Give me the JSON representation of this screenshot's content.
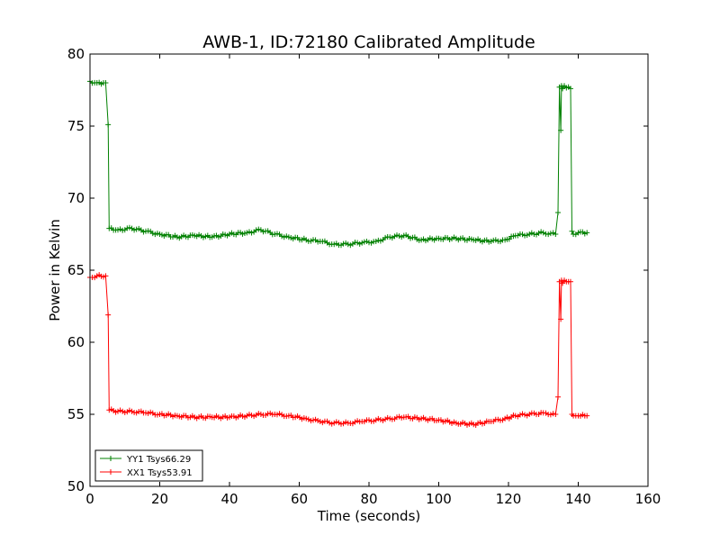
{
  "chart_data": {
    "type": "line",
    "title": "AWB-1, ID:72180 Calibrated Amplitude",
    "xlabel": "Time (seconds)",
    "ylabel": "Power in Kelvin",
    "xlim": [
      0,
      160
    ],
    "ylim": [
      50,
      80
    ],
    "xticks": [
      0,
      20,
      40,
      60,
      80,
      100,
      120,
      140,
      160
    ],
    "yticks": [
      50,
      55,
      60,
      65,
      70,
      75,
      80
    ],
    "grid": false,
    "legend_position": "lower-left",
    "series": [
      {
        "name": "YY1 Tsys66.29",
        "color": "#008000",
        "x": [
          0,
          2,
          4.5,
          5.2,
          5.5,
          8,
          12,
          16,
          20,
          25,
          30,
          35,
          40,
          45,
          49,
          53,
          57,
          62,
          66,
          70,
          74,
          78,
          82,
          86,
          90,
          95,
          100,
          105,
          110,
          115,
          119,
          122,
          126,
          130,
          133.5,
          134.2,
          134.6,
          135,
          135.2,
          135.5,
          136,
          137.8,
          138.2,
          138.6,
          140,
          142.5
        ],
        "y": [
          78.1,
          78.0,
          78.0,
          75.1,
          67.9,
          67.8,
          67.9,
          67.7,
          67.5,
          67.3,
          67.4,
          67.3,
          67.5,
          67.6,
          67.8,
          67.5,
          67.3,
          67.1,
          67.0,
          66.8,
          66.8,
          66.9,
          67.0,
          67.3,
          67.4,
          67.1,
          67.2,
          67.2,
          67.1,
          67.0,
          67.1,
          67.4,
          67.5,
          67.6,
          67.5,
          69.0,
          77.7,
          74.7,
          77.8,
          77.6,
          77.8,
          77.6,
          67.7,
          67.5,
          67.6,
          67.6
        ]
      },
      {
        "name": "XX1 Tsys53.91",
        "color": "#ff0000",
        "x": [
          0,
          2,
          4.5,
          5.2,
          5.5,
          8,
          12,
          16,
          20,
          25,
          30,
          35,
          40,
          45,
          49,
          53,
          57,
          62,
          66,
          70,
          74,
          78,
          82,
          86,
          90,
          95,
          100,
          105,
          110,
          115,
          119,
          122,
          126,
          130,
          133.5,
          134.2,
          134.6,
          135,
          135.2,
          135.5,
          136,
          137.8,
          138.2,
          138.6,
          140,
          142.5
        ],
        "y": [
          64.5,
          64.6,
          64.6,
          61.9,
          55.3,
          55.2,
          55.2,
          55.1,
          55.0,
          54.9,
          54.8,
          54.8,
          54.8,
          54.9,
          55.0,
          55.0,
          54.9,
          54.7,
          54.5,
          54.4,
          54.4,
          54.5,
          54.6,
          54.7,
          54.8,
          54.7,
          54.6,
          54.4,
          54.3,
          54.5,
          54.7,
          54.9,
          55.0,
          55.1,
          55.0,
          56.2,
          64.2,
          61.6,
          64.3,
          64.1,
          64.3,
          64.2,
          55.0,
          54.9,
          54.9,
          54.9
        ]
      }
    ]
  }
}
